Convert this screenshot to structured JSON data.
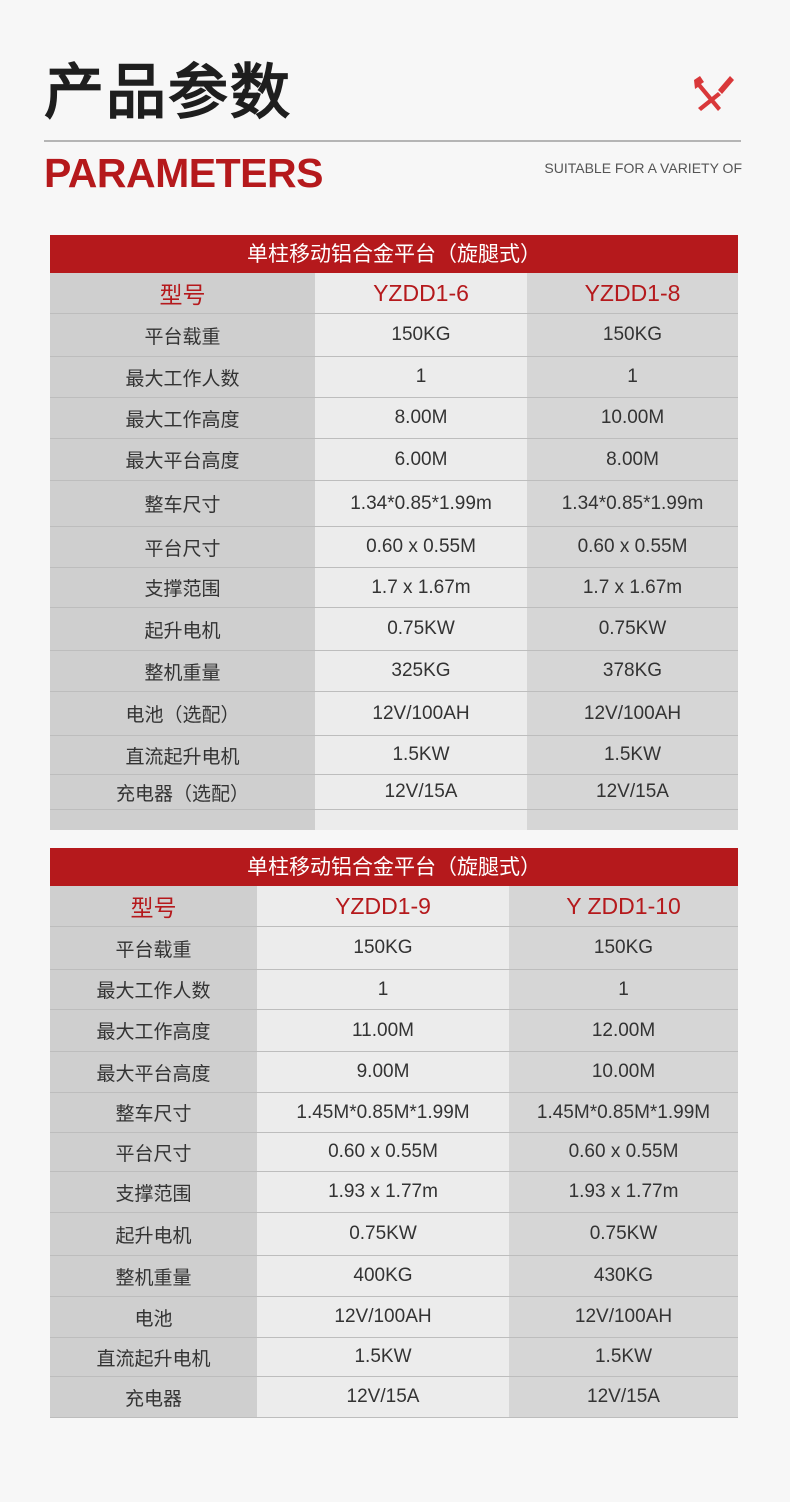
{
  "header": {
    "title_cn": "产品参数",
    "title_en": "PARAMETERS",
    "subtitle_en": "SUITABLE FOR A VARIETY OF",
    "icon": "tools-icon",
    "accent": "#b5191c"
  },
  "tables": [
    {
      "title": "单柱移动铝合金平台（旋腿式）",
      "model_label": "型号",
      "models": [
        "YZDD1-6",
        "YZDD1-8"
      ],
      "rows": [
        {
          "label": "平台载重",
          "values": [
            "150KG",
            "150KG"
          ]
        },
        {
          "label": "最大工作人数",
          "values": [
            "1",
            "1"
          ]
        },
        {
          "label": "最大工作高度",
          "values": [
            "8.00M",
            "10.00M"
          ]
        },
        {
          "label": "最大平台高度",
          "values": [
            "6.00M",
            "8.00M"
          ]
        },
        {
          "label": "整车尺寸",
          "values": [
            "1.34*0.85*1.99m",
            "1.34*0.85*1.99m"
          ]
        },
        {
          "label": "平台尺寸",
          "values": [
            "0.60 x 0.55M",
            "0.60 x 0.55M"
          ]
        },
        {
          "label": "支撑范围",
          "values": [
            "1.7 x 1.67m",
            "1.7 x 1.67m"
          ]
        },
        {
          "label": "起升电机",
          "values": [
            "0.75KW",
            "0.75KW"
          ]
        },
        {
          "label": "整机重量",
          "values": [
            "325KG",
            "378KG"
          ]
        },
        {
          "label": "电池（选配）",
          "values": [
            "12V/100AH",
            "12V/100AH"
          ]
        },
        {
          "label": "直流起升电机",
          "values": [
            "1.5KW",
            "1.5KW"
          ]
        },
        {
          "label": "充电器（选配）",
          "values": [
            "12V/15A",
            "12V/15A"
          ]
        }
      ]
    },
    {
      "title": "单柱移动铝合金平台（旋腿式）",
      "model_label": "型号",
      "models": [
        "YZDD1-9",
        "Y ZDD1-10"
      ],
      "rows": [
        {
          "label": "平台载重",
          "values": [
            "150KG",
            "150KG"
          ]
        },
        {
          "label": "最大工作人数",
          "values": [
            "1",
            "1"
          ]
        },
        {
          "label": "最大工作高度",
          "values": [
            "11.00M",
            "12.00M"
          ]
        },
        {
          "label": "最大平台高度",
          "values": [
            "9.00M",
            "10.00M"
          ]
        },
        {
          "label": "整车尺寸",
          "values": [
            "1.45M*0.85M*1.99M",
            "1.45M*0.85M*1.99M"
          ]
        },
        {
          "label": "平台尺寸",
          "values": [
            "0.60 x 0.55M",
            "0.60 x 0.55M"
          ]
        },
        {
          "label": "支撑范围",
          "values": [
            "1.93 x 1.77m",
            "1.93 x 1.77m"
          ]
        },
        {
          "label": "起升电机",
          "values": [
            "0.75KW",
            "0.75KW"
          ]
        },
        {
          "label": "整机重量",
          "values": [
            "400KG",
            "430KG"
          ]
        },
        {
          "label": "电池",
          "values": [
            "12V/100AH",
            "12V/100AH"
          ]
        },
        {
          "label": "直流起升电机",
          "values": [
            "1.5KW",
            "1.5KW"
          ]
        },
        {
          "label": "充电器",
          "values": [
            "12V/15A",
            "12V/15A"
          ]
        }
      ]
    }
  ]
}
